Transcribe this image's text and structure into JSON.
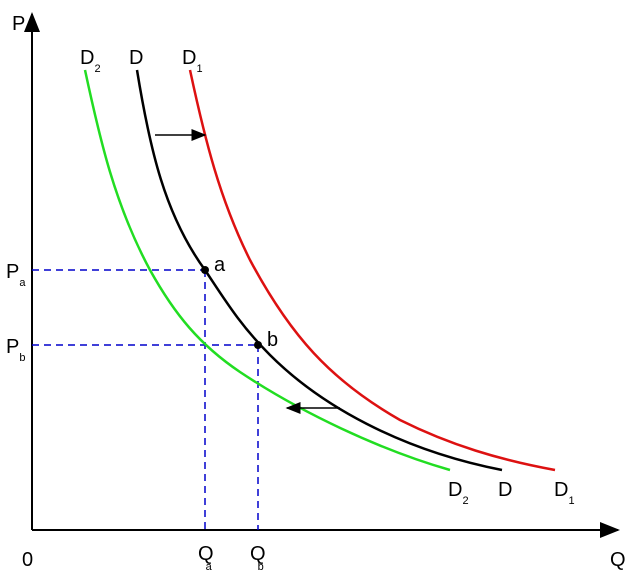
{
  "axes": {
    "y": "P",
    "x": "Q",
    "origin": "0"
  },
  "curves": [
    {
      "name": "D",
      "sub": "2"
    },
    {
      "name": "D"
    },
    {
      "name": "D",
      "sub": "1"
    }
  ],
  "points": [
    {
      "label": "a"
    },
    {
      "label": "b"
    }
  ],
  "prices": [
    {
      "name": "P",
      "sub": "a"
    },
    {
      "name": "P",
      "sub": "b"
    }
  ],
  "quantities": [
    {
      "name": "Q",
      "sub": "a"
    },
    {
      "name": "Q",
      "sub": "b"
    }
  ]
}
